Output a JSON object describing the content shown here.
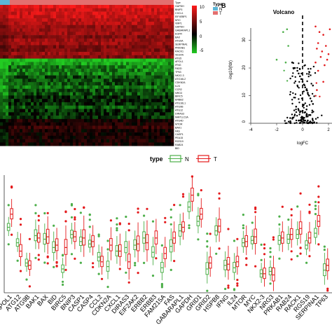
{
  "heatmap": {
    "type_bar_label": "Type",
    "legend_title": "Type",
    "legend_groups": [
      "N",
      "T"
    ],
    "legend_colors": {
      "N": "#5bb6d6",
      "T": "#e36f6f"
    },
    "scale_ticks": [
      "10",
      "5",
      "0",
      "-5"
    ],
    "genes": [
      "Type",
      "GAPDH",
      "BNIP3",
      "CXCL1",
      "EIF4EBP1",
      "MYC",
      "VMP1",
      "GAPDH",
      "GABARAPL1",
      "EGFR",
      "BAX",
      "ATG9A",
      "SERPINA1",
      "PRKAB1",
      "RACK1",
      "VEGFA",
      "ATG5",
      "APOL1",
      "IFNG",
      "FADD",
      "TP63",
      "NKX2-3",
      "ATG16L2",
      "CDKN2A",
      "IL24",
      "CCR2",
      "NRG3",
      "BIRC5",
      "ERBB2",
      "ATG16L1",
      "ATG9B",
      "ATG12",
      "DIRAS3",
      "MAP1LC3A",
      "ATG4D",
      "MTOR",
      "BAK1",
      "FAS",
      "CASP1",
      "PEA15",
      "RGS19",
      "RAB24",
      "BID"
    ],
    "colors": {
      "high": "#ff1a1a",
      "mid": "#000000",
      "low": "#22cc22"
    }
  },
  "volcano": {
    "panel_label": "B",
    "title": "Volcano",
    "xlabel": "logFC",
    "ylabel": "-log10(fdr)",
    "xticks": [
      "-4",
      "-2",
      "0",
      "2"
    ],
    "yticks": [
      "0",
      "10",
      "20",
      "30"
    ],
    "colors": {
      "up": "#e31a1c",
      "down": "#4daf4a",
      "ns": "#000000"
    }
  },
  "boxplot": {
    "legend_title": "type",
    "legend": [
      {
        "label": "N",
        "color": "#4daf4a"
      },
      {
        "label": "T",
        "color": "#e41a1c"
      }
    ],
    "x_labels": [
      "APOL1",
      "ATG12",
      "ATG9B",
      "BAK1",
      "BAX",
      "BID",
      "BIRC5",
      "BNIP3",
      "CASP1",
      "CASP4",
      "CCL2",
      "CDKN2A",
      "CXCL1",
      "DIRAS3",
      "EIF2AK2",
      "ERBB2",
      "ERBB3",
      "FAM215A",
      "FAS",
      "GABARAPL1",
      "GAPDH",
      "GRID1",
      "GRID2",
      "HSPB8",
      "IFNG",
      "IL24",
      "MTOR",
      "MYC",
      "NKX2-3",
      "NRG3",
      "PRKAB1",
      "RAB24",
      "RACK1",
      "RGS19",
      "SERPINA1",
      "TP63"
    ]
  },
  "chart_data": [
    {
      "type": "heatmap",
      "rows": [
        "Type",
        "GAPDH",
        "BNIP3",
        "CXCL1",
        "EIF4EBP1",
        "MYC",
        "VMP1",
        "GAPDH",
        "GABARAPL1",
        "EGFR",
        "BAX",
        "ATG9A",
        "SERPINA1",
        "PRKAB1",
        "RACK1",
        "VEGFA",
        "ATG5",
        "APOL1",
        "IFNG",
        "FADD",
        "TP63",
        "NKX2-3",
        "ATG16L2",
        "CDKN2A",
        "IL24",
        "CCR2",
        "NRG3",
        "BIRC5",
        "ERBB2",
        "ATG16L1",
        "ATG9B",
        "ATG12",
        "DIRAS3",
        "MAP1LC3A",
        "ATG4D",
        "MTOR",
        "BAK1",
        "FAS",
        "CASP1",
        "PEA15",
        "RGS19",
        "RAB24",
        "BID"
      ],
      "row_mean_level": [
        0,
        9,
        8,
        8,
        8,
        7,
        7,
        6,
        6,
        6,
        5,
        6,
        6,
        5,
        5,
        6,
        5,
        -5,
        -4,
        -3,
        -3,
        -3,
        -2,
        -2,
        -2,
        -3,
        -2,
        -2,
        -1,
        -1,
        -1,
        -2,
        -1,
        -1,
        -1,
        1,
        1,
        2,
        1,
        1,
        1,
        1,
        1
      ],
      "color_range": [
        -5,
        10
      ],
      "legend": [
        "N",
        "T"
      ]
    },
    {
      "type": "scatter",
      "title": "Volcano",
      "xlabel": "logFC",
      "ylabel": "-log10(fdr)",
      "xlim": [
        -5,
        3
      ],
      "ylim": [
        0,
        38
      ],
      "series": [
        {
          "name": "up",
          "x": [
            1.0,
            1.3,
            1.6,
            2.1,
            2.5,
            1.2,
            1.8,
            2.3,
            1.1,
            1.5,
            2.0,
            2.7,
            1.4,
            1.9,
            1.0,
            1.7,
            2.4,
            1.2,
            1.6,
            1.1
          ],
          "y": [
            35,
            33,
            32,
            34,
            30,
            29,
            28,
            31,
            27,
            26,
            25,
            27,
            24,
            23,
            22,
            21,
            20,
            19,
            15,
            12
          ]
        },
        {
          "name": "down",
          "x": [
            -1.2,
            -1.5,
            -2.0,
            -1.3,
            -1.1
          ],
          "y": [
            34,
            33,
            23,
            22,
            28
          ]
        },
        {
          "name": "ns",
          "x": [
            -0.8,
            -0.6,
            -0.4,
            -0.3,
            -0.2,
            -0.1,
            0.0,
            0.1,
            0.2,
            0.3,
            0.4,
            0.5,
            0.6,
            0.7,
            0.8,
            -0.5,
            0.3,
            -0.2,
            0.5,
            0.1,
            -0.1,
            0.2,
            0.4,
            -0.3,
            0.6,
            0.0,
            0.1,
            -0.1,
            0.2,
            0.3
          ],
          "y": [
            22,
            20,
            19,
            18,
            17,
            16,
            15,
            14,
            13,
            12,
            11,
            10,
            9,
            8,
            7,
            6,
            5,
            4,
            3,
            2,
            2,
            1,
            1,
            1,
            3,
            2,
            1,
            1,
            4,
            3
          ]
        }
      ]
    },
    {
      "type": "box",
      "xlabel": "",
      "ylabel": "",
      "categories": [
        "APOL1",
        "ATG12",
        "ATG9B",
        "BAK1",
        "BAX",
        "BID",
        "BIRC5",
        "BNIP3",
        "CASP1",
        "CASP4",
        "CCL2",
        "CDKN2A",
        "CXCL1",
        "DIRAS3",
        "EIF2AK2",
        "ERBB2",
        "ERBB3",
        "FAM215A",
        "FAS",
        "GABARAPL1",
        "GAPDH",
        "GRID1",
        "GRID2",
        "HSPB8",
        "IFNG",
        "IL24",
        "MTOR",
        "MYC",
        "NKX2-3",
        "NRG3",
        "PRKAB1",
        "RAB24",
        "RACK1",
        "RGS19",
        "SERPINA1",
        "TP63"
      ],
      "series": [
        {
          "name": "N",
          "medians": [
            7.5,
            6.2,
            4.5,
            6.8,
            6.5,
            5.8,
            4.0,
            6.9,
            6.3,
            6.1,
            5.0,
            4.2,
            5.5,
            5.8,
            6.0,
            6.6,
            5.4,
            4.1,
            5.9,
            7.2,
            9.2,
            8.0,
            4.0,
            7.2,
            4.3,
            4.1,
            6.2,
            6.4,
            3.6,
            3.8,
            6.4,
            6.5,
            6.9,
            6.0,
            7.0,
            3.9
          ]
        },
        {
          "name": "T",
          "medians": [
            8.6,
            5.5,
            4.3,
            6.6,
            6.7,
            6.0,
            5.8,
            6.7,
            6.6,
            6.3,
            4.6,
            6.0,
            5.5,
            4.6,
            6.1,
            6.2,
            6.6,
            5.3,
            6.6,
            7.5,
            10.2,
            8.6,
            4.5,
            7.6,
            4.4,
            4.6,
            6.3,
            6.7,
            3.6,
            3.5,
            6.6,
            6.9,
            7.4,
            6.6,
            8.0,
            4.3
          ]
        }
      ]
    }
  ]
}
